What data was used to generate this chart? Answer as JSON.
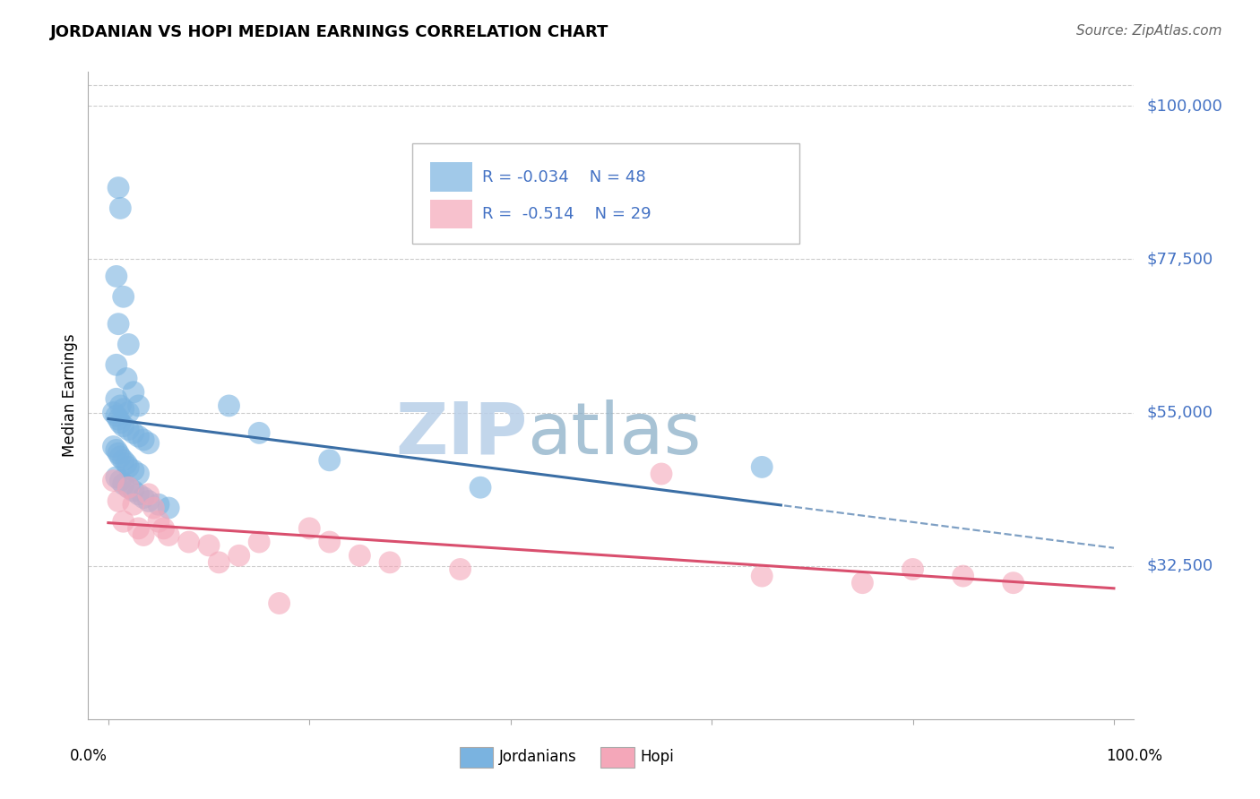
{
  "title": "JORDANIAN VS HOPI MEDIAN EARNINGS CORRELATION CHART",
  "source": "Source: ZipAtlas.com",
  "ylabel": "Median Earnings",
  "y_tick_labels": [
    "$100,000",
    "$77,500",
    "$55,000",
    "$32,500"
  ],
  "y_tick_values": [
    100000,
    77500,
    55000,
    32500
  ],
  "y_min": 10000,
  "y_max": 105000,
  "x_min": -0.02,
  "x_max": 1.02,
  "jordanian_color": "#7ab3e0",
  "hopi_color": "#f4a7b9",
  "hopi_edge_color": "#e06080",
  "jordanian_line_color": "#3a6ea5",
  "hopi_line_color": "#d94f6e",
  "right_label_color": "#4472c4",
  "watermark_zip_color": "#c8d8ea",
  "watermark_atlas_color": "#a0b8cc",
  "background_color": "#ffffff",
  "grid_color": "#cccccc",
  "jordanian_x": [
    0.01,
    0.012,
    0.008,
    0.015,
    0.01,
    0.02,
    0.008,
    0.018,
    0.025,
    0.03,
    0.008,
    0.012,
    0.015,
    0.02,
    0.005,
    0.008,
    0.01,
    0.012,
    0.015,
    0.02,
    0.025,
    0.03,
    0.035,
    0.04,
    0.005,
    0.008,
    0.01,
    0.012,
    0.015,
    0.018,
    0.02,
    0.025,
    0.03,
    0.008,
    0.012,
    0.015,
    0.02,
    0.025,
    0.03,
    0.035,
    0.04,
    0.05,
    0.06,
    0.12,
    0.15,
    0.22,
    0.37,
    0.65
  ],
  "jordanian_y": [
    88000,
    85000,
    75000,
    72000,
    68000,
    65000,
    62000,
    60000,
    58000,
    56000,
    57000,
    56000,
    55500,
    55000,
    55000,
    54500,
    54000,
    53500,
    53000,
    52500,
    52000,
    51500,
    51000,
    50500,
    50000,
    49500,
    49000,
    48500,
    48000,
    47500,
    47000,
    46500,
    46000,
    45500,
    45000,
    44500,
    44000,
    43500,
    43000,
    42500,
    42000,
    41500,
    41000,
    56000,
    52000,
    48000,
    44000,
    47000
  ],
  "hopi_x": [
    0.005,
    0.01,
    0.015,
    0.02,
    0.025,
    0.03,
    0.035,
    0.04,
    0.045,
    0.05,
    0.055,
    0.06,
    0.08,
    0.1,
    0.11,
    0.13,
    0.15,
    0.17,
    0.2,
    0.22,
    0.25,
    0.28,
    0.35,
    0.55,
    0.65,
    0.75,
    0.8,
    0.85,
    0.9
  ],
  "hopi_y": [
    45000,
    42000,
    39000,
    44000,
    41500,
    38000,
    37000,
    43000,
    41000,
    39000,
    38000,
    37000,
    36000,
    35500,
    33000,
    34000,
    36000,
    27000,
    38000,
    36000,
    34000,
    33000,
    32000,
    46000,
    31000,
    30000,
    32000,
    31000,
    30000
  ]
}
